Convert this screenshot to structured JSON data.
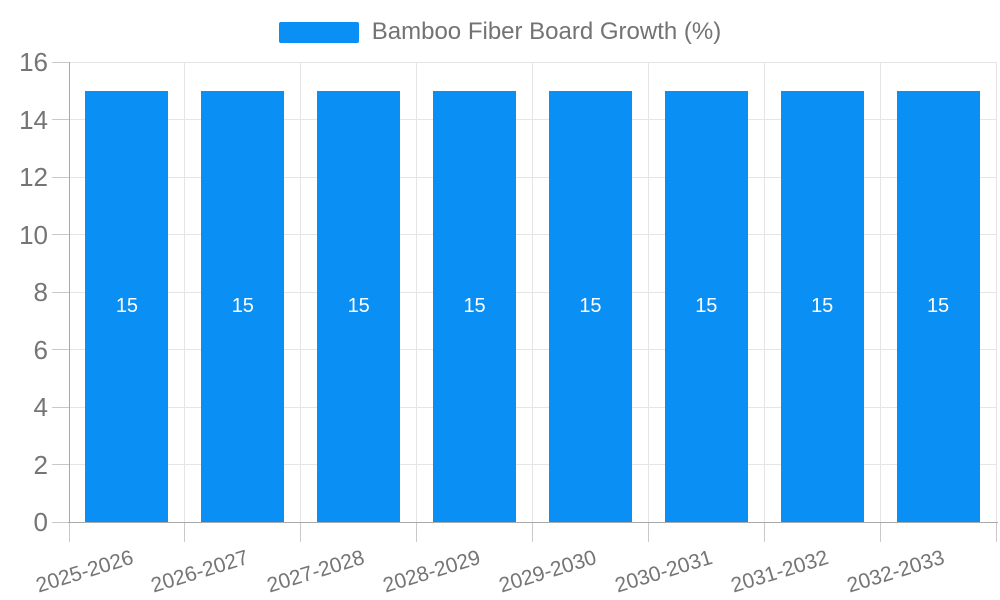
{
  "chart_data": {
    "type": "bar",
    "title": "",
    "series_name": "Bamboo Fiber Board Growth (%)",
    "categories": [
      "2025-2026",
      "2026-2027",
      "2027-2028",
      "2028-2029",
      "2029-2030",
      "2030-2031",
      "2031-2032",
      "2032-2033"
    ],
    "series": [
      {
        "name": "Bamboo Fiber Board Growth (%)",
        "values": [
          15,
          15,
          15,
          15,
          15,
          15,
          15,
          15
        ]
      }
    ],
    "bar_value_labels": [
      "15",
      "15",
      "15",
      "15",
      "15",
      "15",
      "15",
      "15"
    ],
    "ylim": [
      0,
      16
    ],
    "yticks": [
      0,
      2,
      4,
      6,
      8,
      10,
      12,
      14,
      16
    ],
    "grid": true,
    "legend_position": "top",
    "x_label_rotation_deg": -17,
    "colors": {
      "bar": "#0a8ff5",
      "bar_label": "#ffffff",
      "grid": "#e5e5e5",
      "axis": "#a9a9a9",
      "tick": "#c9c9c9",
      "tick_label": "#757575",
      "legend_label": "#737373",
      "background": "#ffffff"
    }
  }
}
